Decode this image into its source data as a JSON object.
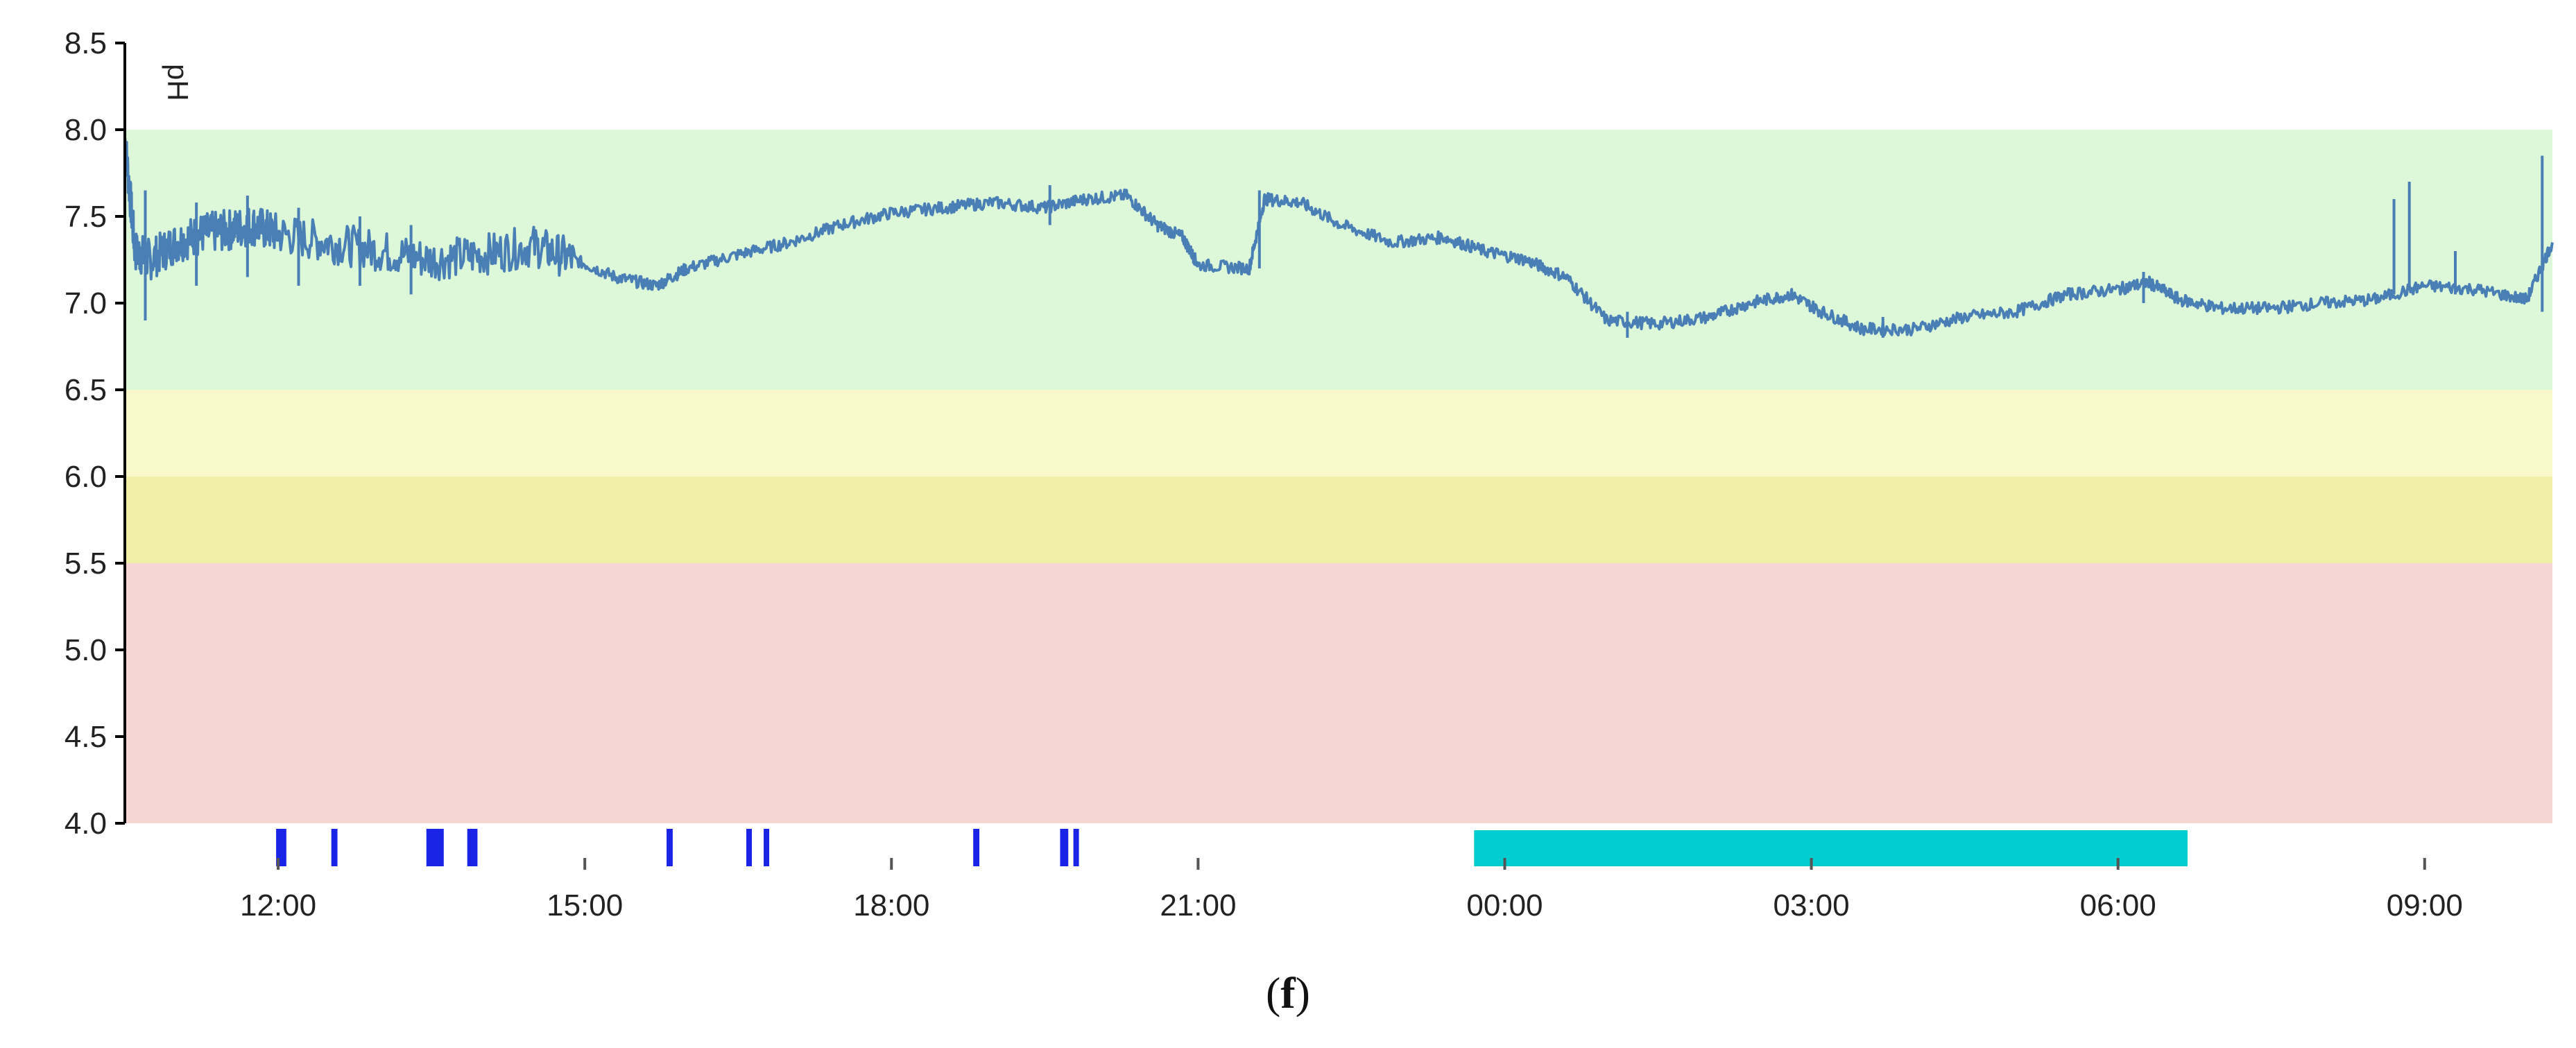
{
  "caption": {
    "open": "(",
    "letter": "f",
    "close": ")"
  },
  "colors": {
    "line": "#4a7fb5",
    "zone_normal": "#dcf8d9",
    "zone_light_yellow": "#f8f8ca",
    "zone_yellow": "#efefa8",
    "zone_red": "#f6d5d3",
    "meal_marker": "#1a24e6",
    "sleep_bar": "#00cdd0",
    "axis": "#000000"
  },
  "chart_data": {
    "type": "line",
    "ylabel": "pH",
    "ylim": [
      4.0,
      8.5
    ],
    "y_ticks": [
      "4.0",
      "4.5",
      "5.0",
      "5.5",
      "6.0",
      "6.5",
      "7.0",
      "7.5",
      "8.0",
      "8.5"
    ],
    "x_time_range_hours": [
      10.5,
      34.25
    ],
    "x_ticks": [
      {
        "label": "12:00",
        "hour": 12
      },
      {
        "label": "15:00",
        "hour": 15
      },
      {
        "label": "18:00",
        "hour": 18
      },
      {
        "label": "21:00",
        "hour": 21
      },
      {
        "label": "00:00",
        "hour": 24
      },
      {
        "label": "03:00",
        "hour": 27
      },
      {
        "label": "06:00",
        "hour": 30
      },
      {
        "label": "09:00",
        "hour": 33
      }
    ],
    "zones": [
      {
        "from": 6.5,
        "to": 8.0,
        "color": "#dcf8d9"
      },
      {
        "from": 6.0,
        "to": 6.5,
        "color": "#f8f8ca"
      },
      {
        "from": 5.5,
        "to": 6.0,
        "color": "#efefa8"
      },
      {
        "from": 4.0,
        "to": 5.5,
        "color": "#f6d5d3"
      }
    ],
    "series": [
      {
        "points": [
          [
            10.5,
            7.95
          ],
          [
            10.6,
            7.3
          ],
          [
            10.75,
            7.25
          ],
          [
            11.0,
            7.35
          ],
          [
            11.25,
            7.4
          ],
          [
            11.5,
            7.42
          ],
          [
            11.75,
            7.45
          ],
          [
            12.0,
            7.4
          ],
          [
            12.5,
            7.35
          ],
          [
            13.0,
            7.3
          ],
          [
            13.5,
            7.25
          ],
          [
            14.0,
            7.28
          ],
          [
            14.5,
            7.33
          ],
          [
            14.9,
            7.25
          ],
          [
            15.3,
            7.15
          ],
          [
            15.7,
            7.1
          ],
          [
            16.0,
            7.2
          ],
          [
            16.5,
            7.28
          ],
          [
            17.0,
            7.35
          ],
          [
            17.5,
            7.45
          ],
          [
            18.0,
            7.52
          ],
          [
            18.5,
            7.55
          ],
          [
            19.0,
            7.58
          ],
          [
            19.5,
            7.55
          ],
          [
            19.9,
            7.6
          ],
          [
            20.3,
            7.62
          ],
          [
            20.6,
            7.45
          ],
          [
            20.85,
            7.38
          ],
          [
            21.0,
            7.22
          ],
          [
            21.5,
            7.2
          ],
          [
            21.65,
            7.6
          ],
          [
            22.0,
            7.58
          ],
          [
            22.4,
            7.45
          ],
          [
            22.9,
            7.35
          ],
          [
            23.4,
            7.38
          ],
          [
            23.8,
            7.3
          ],
          [
            24.2,
            7.25
          ],
          [
            24.6,
            7.15
          ],
          [
            25.0,
            6.9
          ],
          [
            25.5,
            6.88
          ],
          [
            26.0,
            6.92
          ],
          [
            26.4,
            7.0
          ],
          [
            26.8,
            7.05
          ],
          [
            27.1,
            6.95
          ],
          [
            27.5,
            6.85
          ],
          [
            28.0,
            6.85
          ],
          [
            28.5,
            6.92
          ],
          [
            29.0,
            6.95
          ],
          [
            29.5,
            7.05
          ],
          [
            30.0,
            7.08
          ],
          [
            30.3,
            7.12
          ],
          [
            30.6,
            7.02
          ],
          [
            31.0,
            6.97
          ],
          [
            31.5,
            6.97
          ],
          [
            32.0,
            7.0
          ],
          [
            32.5,
            7.02
          ],
          [
            33.0,
            7.1
          ],
          [
            33.5,
            7.08
          ],
          [
            34.0,
            7.02
          ],
          [
            34.25,
            7.35
          ]
        ],
        "spikes": [
          [
            10.7,
            7.65,
            6.9
          ],
          [
            11.2,
            7.58,
            7.1
          ],
          [
            11.7,
            7.62,
            7.15
          ],
          [
            12.2,
            7.55,
            7.1
          ],
          [
            12.8,
            7.5,
            7.1
          ],
          [
            13.3,
            7.45,
            7.05
          ],
          [
            19.55,
            7.68,
            7.45
          ],
          [
            21.6,
            7.65,
            7.2
          ],
          [
            25.2,
            6.95,
            6.8
          ],
          [
            27.7,
            6.92,
            6.8
          ],
          [
            30.25,
            7.18,
            7.0
          ],
          [
            32.7,
            7.6,
            7.05
          ],
          [
            32.85,
            7.7,
            7.1
          ],
          [
            33.3,
            7.3,
            7.05
          ],
          [
            34.15,
            7.85,
            6.95
          ]
        ]
      }
    ],
    "meal_markers": [
      {
        "start": 11.98,
        "end": 12.08
      },
      {
        "start": 12.52,
        "end": 12.58
      },
      {
        "start": 13.45,
        "end": 13.62
      },
      {
        "start": 13.85,
        "end": 13.95
      },
      {
        "start": 15.8,
        "end": 15.86
      },
      {
        "start": 16.58,
        "end": 16.63
      },
      {
        "start": 16.75,
        "end": 16.8
      },
      {
        "start": 18.8,
        "end": 18.86
      },
      {
        "start": 19.65,
        "end": 19.73
      },
      {
        "start": 19.78,
        "end": 19.82
      }
    ],
    "sleep_period": {
      "start": 23.7,
      "end": 30.68
    }
  }
}
